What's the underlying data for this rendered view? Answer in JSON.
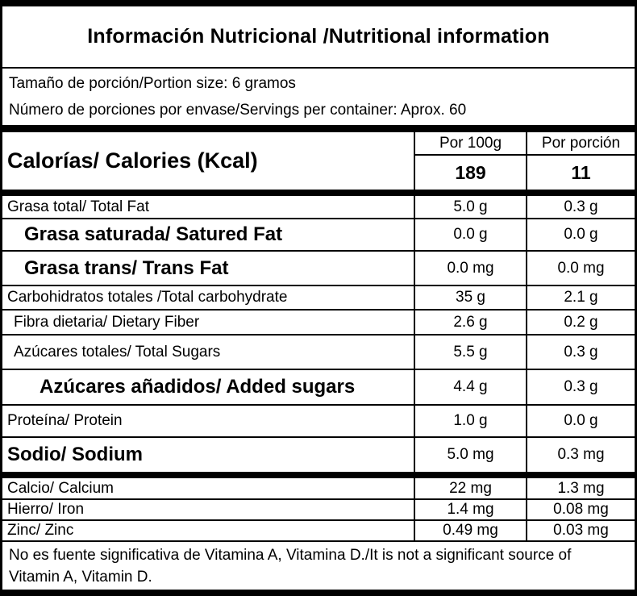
{
  "title": "Información Nutricional /Nutritional information",
  "serving_info": {
    "portion_size": "Tamaño de porción/Portion size: 6 gramos",
    "servings_per_container": "Número de porciones por envase/Servings per container: Aprox. 60"
  },
  "table": {
    "column_headers": {
      "per_100g": "Por 100g",
      "per_portion": "Por porción"
    },
    "calories": {
      "label": "Calorías/ Calories (Kcal)",
      "per_100g": "189",
      "per_portion": "11"
    },
    "rows": [
      {
        "label": "Grasa total/ Total Fat",
        "per_100g": "5.0 g",
        "per_portion": "0.3 g"
      },
      {
        "label": "Grasa saturada/ Satured Fat",
        "per_100g": "0.0 g",
        "per_portion": "0.0 g"
      },
      {
        "label": "Grasa trans/ Trans Fat",
        "per_100g": "0.0 mg",
        "per_portion": "0.0 mg"
      },
      {
        "label": "Carbohidratos totales /Total carbohydrate",
        "per_100g": "35 g",
        "per_portion": "2.1 g"
      },
      {
        "label": "Fibra dietaria/ Dietary Fiber",
        "per_100g": "2.6 g",
        "per_portion": "0.2 g"
      },
      {
        "label": "Azúcares totales/ Total Sugars",
        "per_100g": "5.5 g",
        "per_portion": "0.3 g"
      },
      {
        "label": "Azúcares añadidos/ Added sugars",
        "per_100g": "4.4 g",
        "per_portion": "0.3 g"
      },
      {
        "label": "Proteína/ Protein",
        "per_100g": "1.0 g",
        "per_portion": "0.0 g"
      },
      {
        "label": "Sodio/ Sodium",
        "per_100g": "5.0 mg",
        "per_portion": "0.3 mg"
      }
    ],
    "minerals": [
      {
        "label": "Calcio/ Calcium",
        "per_100g": "22 mg",
        "per_portion": "1.3 mg"
      },
      {
        "label": "Hierro/ Iron",
        "per_100g": "1.4 mg",
        "per_portion": "0.08 mg"
      },
      {
        "label": "Zinc/ Zinc",
        "per_100g": "0.49 mg",
        "per_portion": "0.03 mg"
      }
    ]
  },
  "footnote": "No es fuente significativa de Vitamina A, Vitamina D./It is not a significant source of Vitamin A, Vitamin D.",
  "colors": {
    "background": "#ffffff",
    "text": "#000000",
    "border": "#000000"
  }
}
